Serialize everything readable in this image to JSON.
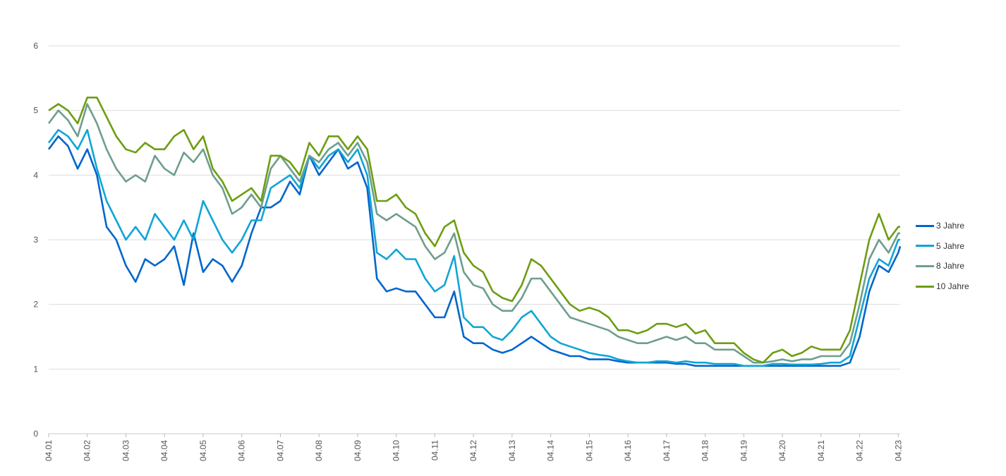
{
  "chart_data": {
    "type": "line",
    "title": "",
    "xlabel": "",
    "ylabel": "",
    "ylim": [
      0,
      6
    ],
    "yticks": [
      "0",
      "1",
      "2",
      "3",
      "4",
      "5",
      "6"
    ],
    "xticks": [
      "04.01",
      "04.02",
      "04.03",
      "04.04",
      "04.05",
      "04.06",
      "04.07",
      "04.08",
      "04.09",
      "04.10",
      "04.11",
      "04.12",
      "04.13",
      "04.14",
      "04.15",
      "04.16",
      "04.17",
      "04.18",
      "04.19",
      "04.20",
      "04.21",
      "04.22",
      "04.23"
    ],
    "xlim": [
      0,
      22.05
    ],
    "grid": "horizontal",
    "legend": "right",
    "x": [
      0,
      0.25,
      0.5,
      0.75,
      1,
      1.25,
      1.5,
      1.75,
      2,
      2.25,
      2.5,
      2.75,
      3,
      3.25,
      3.5,
      3.75,
      4,
      4.25,
      4.5,
      4.75,
      5,
      5.25,
      5.5,
      5.75,
      6,
      6.25,
      6.5,
      6.75,
      7,
      7.25,
      7.5,
      7.75,
      8,
      8.25,
      8.5,
      8.75,
      9,
      9.25,
      9.5,
      9.75,
      10,
      10.25,
      10.5,
      10.75,
      11,
      11.25,
      11.5,
      11.75,
      12,
      12.25,
      12.5,
      12.75,
      13,
      13.25,
      13.5,
      13.75,
      14,
      14.25,
      14.5,
      14.75,
      15,
      15.25,
      15.5,
      15.75,
      16,
      16.25,
      16.5,
      16.75,
      17,
      17.25,
      17.5,
      17.75,
      18,
      18.25,
      18.5,
      18.75,
      19,
      19.25,
      19.5,
      19.75,
      20,
      20.25,
      20.5,
      20.75,
      21,
      21.25,
      21.5,
      21.75,
      22,
      22.05
    ],
    "series": [
      {
        "name": "3 Jahre",
        "color": "#0066cc",
        "values": [
          4.4,
          4.6,
          4.45,
          4.1,
          4.4,
          4.0,
          3.2,
          3.0,
          2.6,
          2.35,
          2.7,
          2.6,
          2.7,
          2.9,
          2.3,
          3.1,
          2.5,
          2.7,
          2.6,
          2.35,
          2.6,
          3.1,
          3.5,
          3.5,
          3.6,
          3.9,
          3.7,
          4.3,
          4.0,
          4.2,
          4.4,
          4.1,
          4.2,
          3.8,
          2.4,
          2.2,
          2.25,
          2.2,
          2.2,
          2.0,
          1.8,
          1.8,
          2.2,
          1.5,
          1.4,
          1.4,
          1.3,
          1.25,
          1.3,
          1.4,
          1.5,
          1.4,
          1.3,
          1.25,
          1.2,
          1.2,
          1.15,
          1.15,
          1.15,
          1.12,
          1.1,
          1.1,
          1.1,
          1.1,
          1.1,
          1.08,
          1.08,
          1.05,
          1.05,
          1.05,
          1.05,
          1.05,
          1.05,
          1.05,
          1.05,
          1.05,
          1.05,
          1.05,
          1.05,
          1.05,
          1.05,
          1.05,
          1.05,
          1.1,
          1.5,
          2.2,
          2.6,
          2.5,
          2.8,
          2.9
        ]
      },
      {
        "name": "5 Jahre",
        "color": "#11a5d6",
        "values": [
          4.5,
          4.7,
          4.6,
          4.4,
          4.7,
          4.1,
          3.6,
          3.3,
          3.0,
          3.2,
          3.0,
          3.4,
          3.2,
          3.0,
          3.3,
          3.0,
          3.6,
          3.3,
          3.0,
          2.8,
          3.0,
          3.3,
          3.3,
          3.8,
          3.9,
          4.0,
          3.8,
          4.3,
          4.1,
          4.3,
          4.4,
          4.2,
          4.4,
          4.0,
          2.8,
          2.7,
          2.85,
          2.7,
          2.7,
          2.4,
          2.2,
          2.3,
          2.75,
          1.8,
          1.65,
          1.65,
          1.5,
          1.45,
          1.6,
          1.8,
          1.9,
          1.7,
          1.5,
          1.4,
          1.35,
          1.3,
          1.25,
          1.22,
          1.2,
          1.15,
          1.12,
          1.1,
          1.1,
          1.12,
          1.12,
          1.1,
          1.12,
          1.1,
          1.1,
          1.08,
          1.08,
          1.08,
          1.05,
          1.05,
          1.05,
          1.08,
          1.08,
          1.07,
          1.07,
          1.07,
          1.08,
          1.1,
          1.1,
          1.2,
          1.8,
          2.4,
          2.7,
          2.6,
          3.0,
          3.0
        ]
      },
      {
        "name": "8 Jahre",
        "color": "#6e9e8e",
        "values": [
          4.8,
          5.0,
          4.85,
          4.6,
          5.1,
          4.8,
          4.4,
          4.1,
          3.9,
          4.0,
          3.9,
          4.3,
          4.1,
          4.0,
          4.35,
          4.2,
          4.4,
          4.0,
          3.8,
          3.4,
          3.5,
          3.7,
          3.5,
          4.1,
          4.3,
          4.1,
          3.9,
          4.3,
          4.2,
          4.4,
          4.5,
          4.3,
          4.5,
          4.2,
          3.4,
          3.3,
          3.4,
          3.3,
          3.2,
          2.9,
          2.7,
          2.8,
          3.1,
          2.5,
          2.3,
          2.25,
          2.0,
          1.9,
          1.9,
          2.1,
          2.4,
          2.4,
          2.2,
          2.0,
          1.8,
          1.75,
          1.7,
          1.65,
          1.6,
          1.5,
          1.45,
          1.4,
          1.4,
          1.45,
          1.5,
          1.45,
          1.5,
          1.4,
          1.4,
          1.3,
          1.3,
          1.3,
          1.2,
          1.1,
          1.1,
          1.12,
          1.15,
          1.12,
          1.15,
          1.15,
          1.2,
          1.2,
          1.2,
          1.4,
          2.0,
          2.7,
          3.0,
          2.8,
          3.1,
          3.1
        ]
      },
      {
        "name": "10 Jahre",
        "color": "#6e9d12",
        "values": [
          5.0,
          5.1,
          5.0,
          4.8,
          5.2,
          5.2,
          4.9,
          4.6,
          4.4,
          4.35,
          4.5,
          4.4,
          4.4,
          4.6,
          4.7,
          4.4,
          4.6,
          4.1,
          3.9,
          3.6,
          3.7,
          3.8,
          3.6,
          4.3,
          4.3,
          4.2,
          4.0,
          4.5,
          4.3,
          4.6,
          4.6,
          4.4,
          4.6,
          4.4,
          3.6,
          3.6,
          3.7,
          3.5,
          3.4,
          3.1,
          2.9,
          3.2,
          3.3,
          2.8,
          2.6,
          2.5,
          2.2,
          2.1,
          2.05,
          2.3,
          2.7,
          2.6,
          2.4,
          2.2,
          2.0,
          1.9,
          1.95,
          1.9,
          1.8,
          1.6,
          1.6,
          1.55,
          1.6,
          1.7,
          1.7,
          1.65,
          1.7,
          1.55,
          1.6,
          1.4,
          1.4,
          1.4,
          1.25,
          1.15,
          1.1,
          1.25,
          1.3,
          1.2,
          1.25,
          1.35,
          1.3,
          1.3,
          1.3,
          1.6,
          2.3,
          3.0,
          3.4,
          3.0,
          3.2,
          3.2
        ]
      }
    ]
  }
}
